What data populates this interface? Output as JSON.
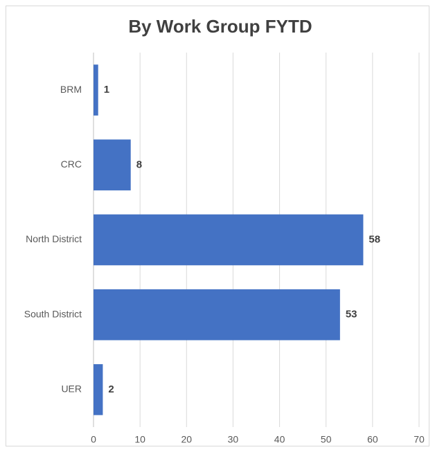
{
  "chart_data": {
    "type": "bar",
    "orientation": "horizontal",
    "title": "By Work Group FYTD",
    "categories": [
      "BRM",
      "CRC",
      "North District",
      "South District",
      "UER"
    ],
    "values": [
      1,
      8,
      58,
      53,
      2
    ],
    "color": "#4472c4",
    "xlim": [
      0,
      70
    ],
    "xticks": [
      0,
      10,
      20,
      30,
      40,
      50,
      60,
      70
    ],
    "grid": true
  }
}
